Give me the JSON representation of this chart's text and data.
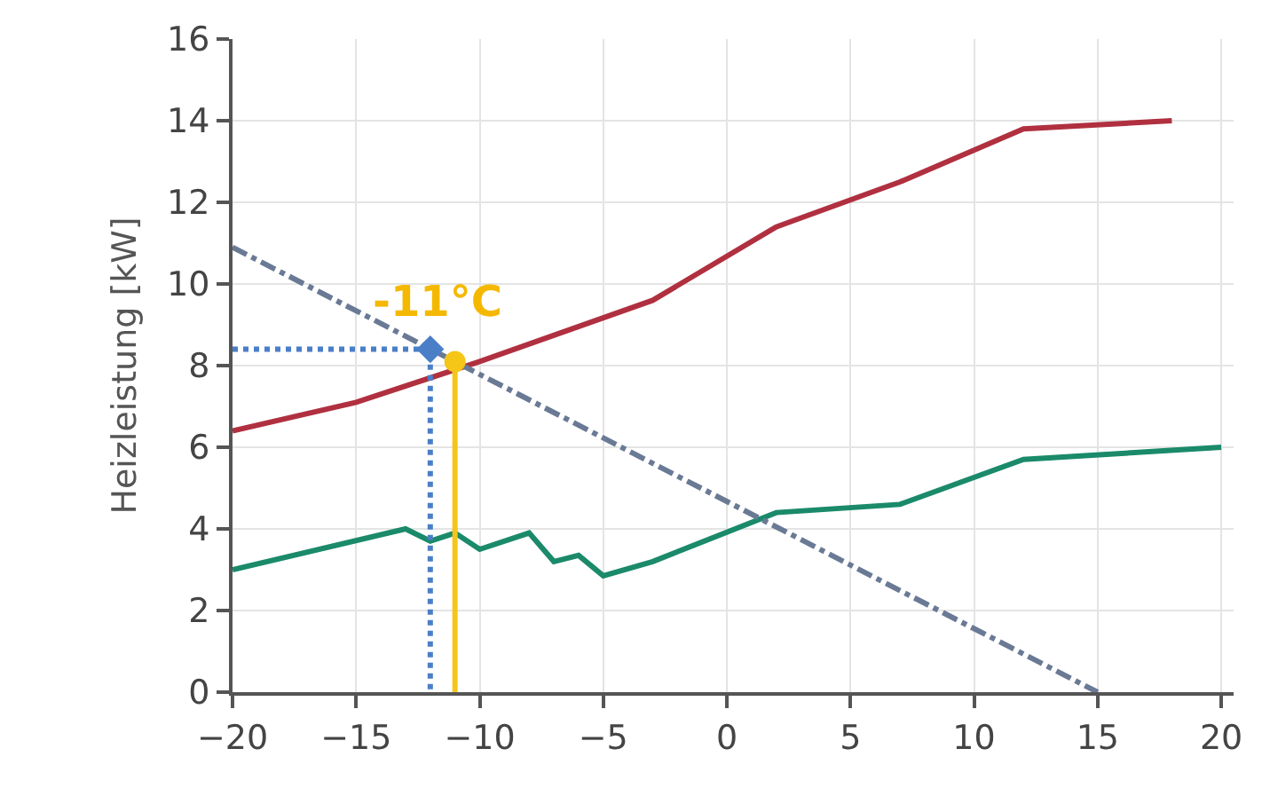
{
  "chart_data": {
    "type": "line",
    "ylabel": "Heizleistung [kW]",
    "xlim": [
      -20,
      20.5
    ],
    "xticks": [
      -20,
      -15,
      -10,
      -5,
      0,
      5,
      10,
      15,
      20
    ],
    "ylim": [
      0,
      16
    ],
    "yticks": [
      0,
      2,
      4,
      6,
      8,
      10,
      12,
      14,
      16
    ],
    "grid": true,
    "marker": "none",
    "series": [
      {
        "color": "#b03040",
        "x": [
          -20,
          -15,
          -10,
          -3,
          2,
          7,
          12,
          18
        ],
        "values": [
          6.4,
          7.1,
          8.1,
          9.6,
          11.4,
          12.5,
          13.8,
          14.0
        ]
      },
      {
        "color": "#1a8a6a",
        "x": [
          -20,
          -13,
          -12,
          -11,
          -10,
          -8,
          -7,
          -6,
          -5,
          -3,
          2,
          7,
          12,
          20
        ],
        "values": [
          3.0,
          4.0,
          3.7,
          3.9,
          3.5,
          3.9,
          3.2,
          3.35,
          2.85,
          3.2,
          4.4,
          4.6,
          5.7,
          6.0
        ]
      },
      {
        "color": "#6a7a95",
        "line_style": "dashdot",
        "x": [
          -20,
          15
        ],
        "values": [
          10.9,
          0
        ]
      },
      {
        "color": "#4a7fc8",
        "line_style": "dotted",
        "x": [
          -20,
          -12,
          -12
        ],
        "values": [
          8.4,
          8.4,
          0
        ]
      },
      {
        "color": "#4a7fc8",
        "type": "scatter",
        "marker": "diamond",
        "x": [
          -12
        ],
        "values": [
          8.4
        ]
      },
      {
        "color": "#f5c518",
        "x": [
          -11,
          -11
        ],
        "values": [
          0,
          8.1
        ]
      },
      {
        "color": "#f5c518",
        "type": "scatter",
        "marker": "circle",
        "x": [
          -11
        ],
        "values": [
          8.1
        ]
      }
    ],
    "annotations": [
      {
        "text": "-11°C",
        "x": -11,
        "y": 8.1
      }
    ]
  }
}
